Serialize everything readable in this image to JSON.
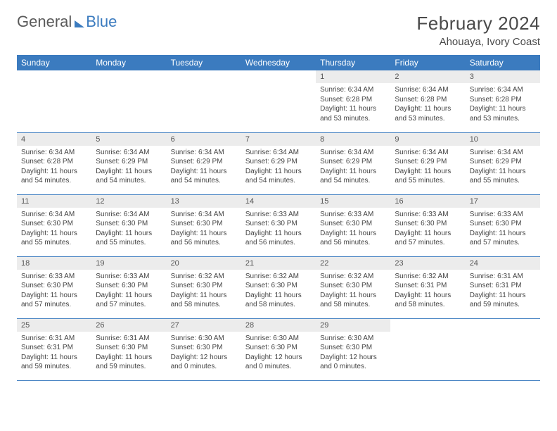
{
  "logo": {
    "word1": "General",
    "word2": "Blue"
  },
  "title": "February 2024",
  "location": "Ahouaya, Ivory Coast",
  "dow_header_bg": "#3b7bbf",
  "dow_header_fg": "#ffffff",
  "daynum_bg": "#ececec",
  "row_border": "#3b7bbf",
  "days_of_week": [
    "Sunday",
    "Monday",
    "Tuesday",
    "Wednesday",
    "Thursday",
    "Friday",
    "Saturday"
  ],
  "weeks": [
    [
      null,
      null,
      null,
      null,
      {
        "n": "1",
        "sr": "6:34 AM",
        "ss": "6:28 PM",
        "dl": "11 hours and 53 minutes."
      },
      {
        "n": "2",
        "sr": "6:34 AM",
        "ss": "6:28 PM",
        "dl": "11 hours and 53 minutes."
      },
      {
        "n": "3",
        "sr": "6:34 AM",
        "ss": "6:28 PM",
        "dl": "11 hours and 53 minutes."
      }
    ],
    [
      {
        "n": "4",
        "sr": "6:34 AM",
        "ss": "6:28 PM",
        "dl": "11 hours and 54 minutes."
      },
      {
        "n": "5",
        "sr": "6:34 AM",
        "ss": "6:29 PM",
        "dl": "11 hours and 54 minutes."
      },
      {
        "n": "6",
        "sr": "6:34 AM",
        "ss": "6:29 PM",
        "dl": "11 hours and 54 minutes."
      },
      {
        "n": "7",
        "sr": "6:34 AM",
        "ss": "6:29 PM",
        "dl": "11 hours and 54 minutes."
      },
      {
        "n": "8",
        "sr": "6:34 AM",
        "ss": "6:29 PM",
        "dl": "11 hours and 54 minutes."
      },
      {
        "n": "9",
        "sr": "6:34 AM",
        "ss": "6:29 PM",
        "dl": "11 hours and 55 minutes."
      },
      {
        "n": "10",
        "sr": "6:34 AM",
        "ss": "6:29 PM",
        "dl": "11 hours and 55 minutes."
      }
    ],
    [
      {
        "n": "11",
        "sr": "6:34 AM",
        "ss": "6:30 PM",
        "dl": "11 hours and 55 minutes."
      },
      {
        "n": "12",
        "sr": "6:34 AM",
        "ss": "6:30 PM",
        "dl": "11 hours and 55 minutes."
      },
      {
        "n": "13",
        "sr": "6:34 AM",
        "ss": "6:30 PM",
        "dl": "11 hours and 56 minutes."
      },
      {
        "n": "14",
        "sr": "6:33 AM",
        "ss": "6:30 PM",
        "dl": "11 hours and 56 minutes."
      },
      {
        "n": "15",
        "sr": "6:33 AM",
        "ss": "6:30 PM",
        "dl": "11 hours and 56 minutes."
      },
      {
        "n": "16",
        "sr": "6:33 AM",
        "ss": "6:30 PM",
        "dl": "11 hours and 57 minutes."
      },
      {
        "n": "17",
        "sr": "6:33 AM",
        "ss": "6:30 PM",
        "dl": "11 hours and 57 minutes."
      }
    ],
    [
      {
        "n": "18",
        "sr": "6:33 AM",
        "ss": "6:30 PM",
        "dl": "11 hours and 57 minutes."
      },
      {
        "n": "19",
        "sr": "6:33 AM",
        "ss": "6:30 PM",
        "dl": "11 hours and 57 minutes."
      },
      {
        "n": "20",
        "sr": "6:32 AM",
        "ss": "6:30 PM",
        "dl": "11 hours and 58 minutes."
      },
      {
        "n": "21",
        "sr": "6:32 AM",
        "ss": "6:30 PM",
        "dl": "11 hours and 58 minutes."
      },
      {
        "n": "22",
        "sr": "6:32 AM",
        "ss": "6:30 PM",
        "dl": "11 hours and 58 minutes."
      },
      {
        "n": "23",
        "sr": "6:32 AM",
        "ss": "6:31 PM",
        "dl": "11 hours and 58 minutes."
      },
      {
        "n": "24",
        "sr": "6:31 AM",
        "ss": "6:31 PM",
        "dl": "11 hours and 59 minutes."
      }
    ],
    [
      {
        "n": "25",
        "sr": "6:31 AM",
        "ss": "6:31 PM",
        "dl": "11 hours and 59 minutes."
      },
      {
        "n": "26",
        "sr": "6:31 AM",
        "ss": "6:30 PM",
        "dl": "11 hours and 59 minutes."
      },
      {
        "n": "27",
        "sr": "6:30 AM",
        "ss": "6:30 PM",
        "dl": "12 hours and 0 minutes."
      },
      {
        "n": "28",
        "sr": "6:30 AM",
        "ss": "6:30 PM",
        "dl": "12 hours and 0 minutes."
      },
      {
        "n": "29",
        "sr": "6:30 AM",
        "ss": "6:30 PM",
        "dl": "12 hours and 0 minutes."
      },
      null,
      null
    ]
  ],
  "labels": {
    "sunrise": "Sunrise:",
    "sunset": "Sunset:",
    "daylight": "Daylight:"
  }
}
